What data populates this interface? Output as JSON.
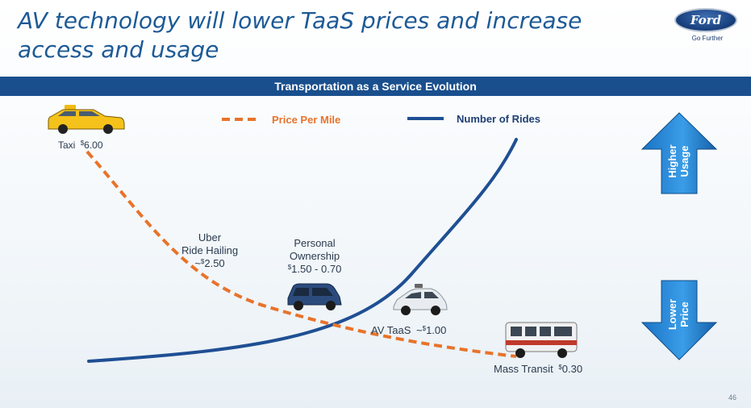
{
  "slide": {
    "title_line1": "AV technology will lower TaaS prices and increase",
    "title_line2": "access and usage",
    "brand": "Ford",
    "tagline": "Go Further",
    "page_number": "46"
  },
  "chart_data": {
    "type": "line",
    "title": "Transportation as a Service Evolution",
    "legend_position": "top",
    "grid": false,
    "series": [
      {
        "name": "Price Per Mile",
        "style": "dashed",
        "color": "#e8732a"
      },
      {
        "name": "Number of Rides",
        "style": "solid",
        "color": "#1f4f94"
      }
    ],
    "categories": [
      {
        "label": "Taxi",
        "price": "6.00",
        "prefix": "",
        "vehicle": "taxi-icon"
      },
      {
        "label": "Uber\nRide Hailing",
        "price": "2.50",
        "prefix": "~",
        "vehicle": ""
      },
      {
        "label": "Personal\nOwnership",
        "price": "1.50 - 0.70",
        "prefix": "",
        "vehicle": "suv-icon"
      },
      {
        "label": "AV TaaS",
        "price": "1.00",
        "prefix": "~",
        "vehicle": "sedan-icon"
      },
      {
        "label": "Mass Transit",
        "price": "0.30",
        "prefix": "",
        "vehicle": "bus-icon"
      }
    ],
    "currency_symbol": "$",
    "arrows": [
      {
        "label": "Higher\nUsage",
        "direction": "up"
      },
      {
        "label": "Lower\nPrice",
        "direction": "down"
      }
    ]
  }
}
